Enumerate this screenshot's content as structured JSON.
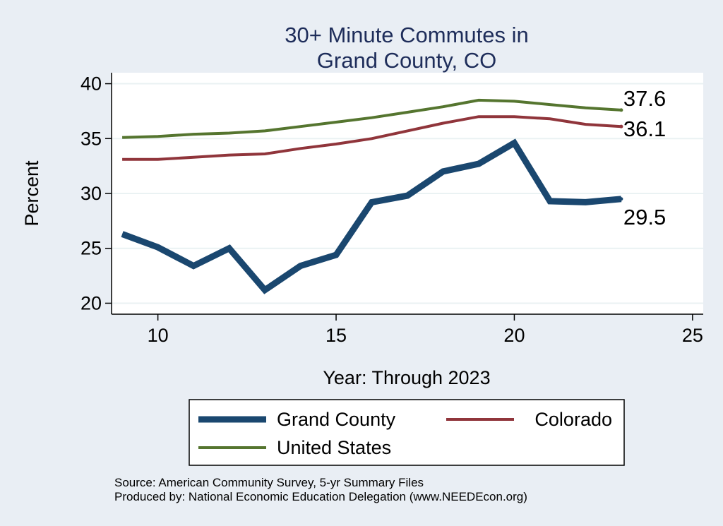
{
  "chart_data": {
    "type": "line",
    "title": [
      "30+ Minute Commutes in",
      "Grand County, CO"
    ],
    "xlabel": "Year: Through 2023",
    "ylabel": "Percent",
    "xlim": [
      8.7,
      25.3
    ],
    "ylim": [
      19.0,
      41.0
    ],
    "xticks": [
      10,
      15,
      20,
      25
    ],
    "yticks": [
      20,
      25,
      30,
      35,
      40
    ],
    "grid": true,
    "x": [
      9,
      10,
      11,
      12,
      13,
      14,
      15,
      16,
      17,
      18,
      19,
      20,
      21,
      22,
      23
    ],
    "series": [
      {
        "name": "Grand County",
        "color": "#1a476f",
        "values": [
          26.3,
          25.1,
          23.4,
          25.0,
          21.2,
          23.4,
          24.4,
          29.2,
          29.8,
          32.0,
          32.7,
          34.6,
          29.3,
          29.2,
          29.5
        ],
        "end_label": "29.5"
      },
      {
        "name": "Colorado",
        "color": "#90353b",
        "values": [
          33.1,
          33.1,
          33.3,
          33.5,
          33.6,
          34.1,
          34.5,
          35.0,
          35.7,
          36.4,
          37.0,
          37.0,
          36.8,
          36.3,
          36.1
        ],
        "end_label": "36.1"
      },
      {
        "name": "United States",
        "color": "#55752f",
        "values": [
          35.1,
          35.2,
          35.4,
          35.5,
          35.7,
          36.1,
          36.5,
          36.9,
          37.4,
          37.9,
          38.5,
          38.4,
          38.1,
          37.8,
          37.6
        ],
        "end_label": "37.6"
      }
    ],
    "legend": [
      "Grand County",
      "Colorado",
      "United States"
    ],
    "source_lines": [
      "Source: American Community Survey, 5-yr Summary Files",
      "Produced by: National Economic Education Delegation (www.NEEDEcon.org)"
    ]
  }
}
